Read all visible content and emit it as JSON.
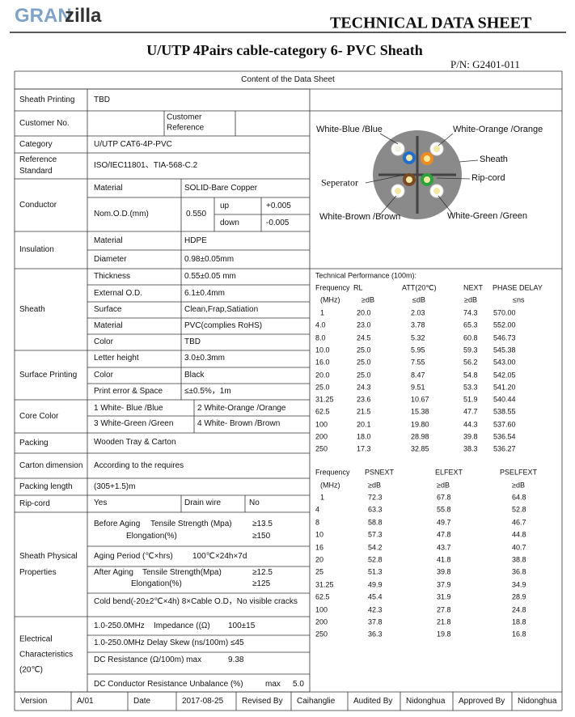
{
  "header": {
    "logo_a": "GRAN",
    "logo_b": "zilla",
    "title": "TECHNICAL DATA SHEET",
    "subtitle": "U/UTP 4Pairs cable-category 6- PVC Sheath",
    "pn": "P/N: G2401-011"
  },
  "table": {
    "caption": "Content of the Data Sheet",
    "rows": [
      {
        "label": "Sheath Printing",
        "cells": [
          "TBD"
        ]
      },
      {
        "label": "Customer No.",
        "cells": [
          "Customer Reference"
        ]
      },
      {
        "label": "Category",
        "cells": [
          "U/UTP CAT6-4P-PVC"
        ]
      },
      {
        "label": "Reference Standard",
        "cells": [
          "ISO/IEC11801、TIA-568-C.2"
        ]
      },
      {
        "label": "Conductor",
        "cells": [
          "Material",
          "SOLID-Bare Copper",
          "Nom.O.D.(mm)",
          "0.550",
          "up",
          "+0.005",
          "down",
          "-0.005"
        ]
      },
      {
        "label": "Insulation",
        "cells": [
          "Material",
          "HDPE",
          "Diameter",
          "0.98±0.05mm"
        ]
      },
      {
        "label": "Sheath",
        "cells": [
          "Thickness",
          "0.55±0.05 mm",
          "External O.D.",
          "6.1±0.4mm",
          "Surface",
          "Clean,Frap,Satiation",
          "Material",
          "PVC(complies RoHS)",
          "Color",
          "TBD"
        ]
      },
      {
        "label": "Surface Printing",
        "cells": [
          "Letter height",
          "3.0±0.3mm",
          "Color",
          "Black",
          "Print error & Space",
          "≤±0.5%，1m"
        ]
      },
      {
        "label": "Core Color",
        "cells": [
          "1 White- Blue /Blue",
          "2 White-Orange /Orange",
          "3 White-Green /Green",
          "4 White- Brown /Brown"
        ]
      },
      {
        "label": "Packing",
        "cells": [
          "Wooden Tray & Carton"
        ]
      },
      {
        "label": "Carton dimension",
        "cells": [
          "According to the requires"
        ]
      },
      {
        "label": "Packing length",
        "cells": [
          "(305+1.5)m"
        ]
      },
      {
        "label": "Rip-cord",
        "cells": [
          "Yes",
          "Drain wire",
          "No"
        ]
      },
      {
        "label": "Sheath Physical Properties",
        "cells": [
          "Before Aging",
          "Tensile Strength (Mpa)",
          "≥13.5",
          "Elongation(%)",
          "≥150",
          "Aging Period (℃×hrs)",
          "100℃×24h×7d",
          "After Aging",
          "Tensile Strength(Mpa)",
          "≥12.5",
          "Elongation(%)",
          "≥125",
          "Cold bend(-20±2℃×4h) 8×Cable O.D，No visible cracks"
        ]
      },
      {
        "label": "Electrical Characteristics (20℃)",
        "cells": [
          "1.0-250.0MHz",
          "Impedance ((Ω)",
          "100±15",
          "1.0-250.0MHz Delay Skew (ns/100m) ≤45",
          "DC Resistance (Ω/100m) max",
          "9.38",
          "DC Conductor Resistance Unbalance (%)",
          "max",
          "5.0"
        ]
      }
    ],
    "footer": [
      "Version",
      "A/01",
      "Date",
      "2017-08-25",
      "Revised By",
      "Caihanglie",
      "Audited By",
      "Nidonghua",
      "Approved By",
      "Nidonghua"
    ]
  },
  "diagram": {
    "labels": [
      "White-Blue /Blue",
      "White-Orange /Orange",
      "Sheath",
      "Seperator",
      "Rip-cord",
      "White-Brown /Brown",
      "White-Green /Green"
    ]
  },
  "performance": {
    "title": "Technical Performance (100m):",
    "table1": {
      "header": [
        "Frequency",
        "RL",
        "ATT(20℃)",
        "NEXT",
        "PHASE DELAY"
      ],
      "units": [
        "(MHz)",
        "≥dB",
        "≤dB",
        "≥dB",
        "≤ns"
      ],
      "rows": [
        [
          "1",
          "20.0",
          "2.03",
          "74.3",
          "570.00"
        ],
        [
          "4.0",
          "23.0",
          "3.78",
          "65.3",
          "552.00"
        ],
        [
          "8.0",
          "24.5",
          "5.32",
          "60.8",
          "546.73"
        ],
        [
          "10.0",
          "25.0",
          "5.95",
          "59.3",
          "545.38"
        ],
        [
          "16.0",
          "25.0",
          "7.55",
          "56.2",
          "543.00"
        ],
        [
          "20.0",
          "25.0",
          "8.47",
          "54.8",
          "542.05"
        ],
        [
          "25.0",
          "24.3",
          "9.51",
          "53.3",
          "541.20"
        ],
        [
          "31.25",
          "23.6",
          "10.67",
          "51.9",
          "540.44"
        ],
        [
          "62.5",
          "21.5",
          "15.38",
          "47.7",
          "538.55"
        ],
        [
          "100",
          "20.1",
          "19.80",
          "44.3",
          "537.60"
        ],
        [
          "200",
          "18.0",
          "28.98",
          "39.8",
          "536.54"
        ],
        [
          "250",
          "17.3",
          "32.85",
          "38.3",
          "536.27"
        ]
      ]
    },
    "table2": {
      "header": [
        "Frequency",
        "PSNEXT",
        "ELFEXT",
        "PSELFEXT"
      ],
      "units": [
        "(MHz)",
        "≥dB",
        "≥dB",
        "≥dB"
      ],
      "rows": [
        [
          "1",
          "72.3",
          "67.8",
          "64.8"
        ],
        [
          "4",
          "63.3",
          "55.8",
          "52.8"
        ],
        [
          "8",
          "58.8",
          "49.7",
          "46.7"
        ],
        [
          "10",
          "57.3",
          "47.8",
          "44.8"
        ],
        [
          "16",
          "54.2",
          "43.7",
          "40.7"
        ],
        [
          "20",
          "52.8",
          "41.8",
          "38.8"
        ],
        [
          "25",
          "51.3",
          "39.8",
          "36.8"
        ],
        [
          "31.25",
          "49.9",
          "37.9",
          "34.9"
        ],
        [
          "62.5",
          "45.4",
          "31.9",
          "28.9"
        ],
        [
          "100",
          "42.3",
          "27.8",
          "24.8"
        ],
        [
          "200",
          "37.8",
          "21.8",
          "18.8"
        ],
        [
          "250",
          "36.3",
          "19.8",
          "16.8"
        ]
      ]
    }
  }
}
